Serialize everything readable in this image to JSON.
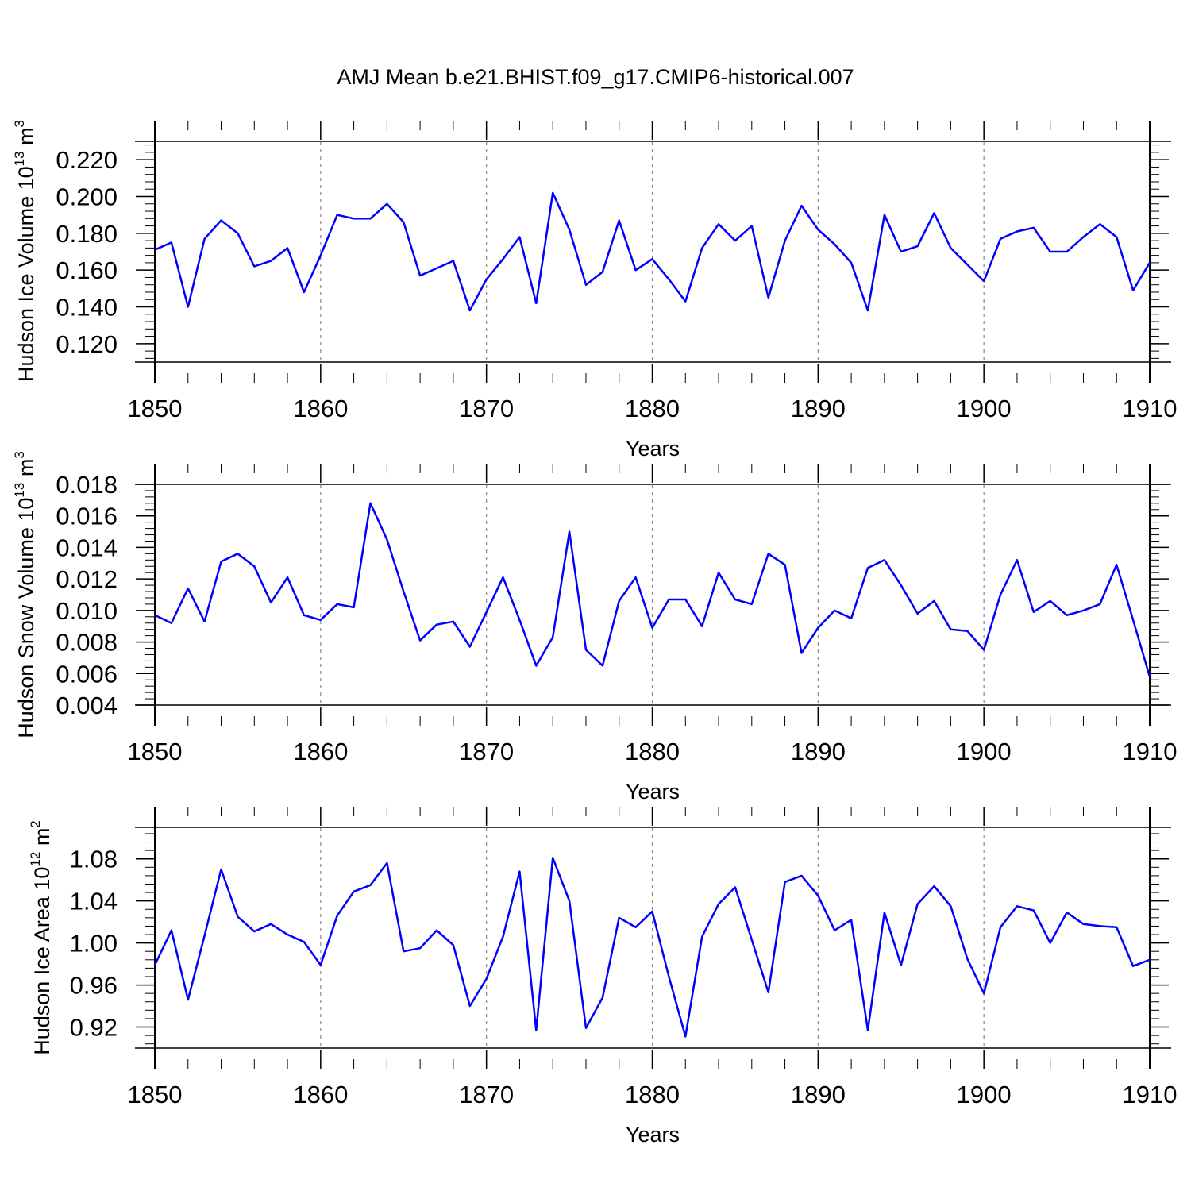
{
  "title": "AMJ Mean b.e21.BHIST.f09_g17.CMIP6-historical.007",
  "colors": {
    "line": "#0000ff",
    "axis": "#000000",
    "grid": "#888888"
  },
  "chart_data": [
    {
      "type": "line",
      "ylabel": {
        "main": "Hudson Ice Volume 10",
        "exp": "13",
        "unit": " m",
        "unit_exp": "3"
      },
      "xlabel": "Years",
      "xlim": [
        1850,
        1910
      ],
      "xticks": [
        1850,
        1860,
        1870,
        1880,
        1890,
        1900,
        1910
      ],
      "xtick_labels": [
        "1850",
        "1860",
        "1870",
        "1880",
        "1890",
        "1900",
        "1910"
      ],
      "ylim": [
        0.11,
        0.23
      ],
      "yticks": [
        0.12,
        0.14,
        0.16,
        0.18,
        0.2,
        0.22
      ],
      "ytick_labels": [
        "0.120",
        "0.140",
        "0.160",
        "0.180",
        "0.200",
        "0.220"
      ],
      "yminor_step": 0.004,
      "x": [
        1850,
        1851,
        1852,
        1853,
        1854,
        1855,
        1856,
        1857,
        1858,
        1859,
        1860,
        1861,
        1862,
        1863,
        1864,
        1865,
        1866,
        1867,
        1868,
        1869,
        1870,
        1871,
        1872,
        1873,
        1874,
        1875,
        1876,
        1877,
        1878,
        1879,
        1880,
        1881,
        1882,
        1883,
        1884,
        1885,
        1886,
        1887,
        1888,
        1889,
        1890,
        1891,
        1892,
        1893,
        1894,
        1895,
        1896,
        1897,
        1898,
        1899,
        1900,
        1901,
        1902,
        1903,
        1904,
        1905,
        1906,
        1907,
        1908,
        1909,
        1910
      ],
      "values": [
        0.171,
        0.175,
        0.14,
        0.177,
        0.187,
        0.18,
        0.162,
        0.165,
        0.172,
        0.148,
        0.168,
        0.19,
        0.188,
        0.188,
        0.196,
        0.186,
        0.157,
        0.161,
        0.165,
        0.138,
        0.155,
        0.166,
        0.178,
        0.142,
        0.202,
        0.182,
        0.152,
        0.159,
        0.187,
        0.16,
        0.166,
        0.155,
        0.143,
        0.172,
        0.185,
        0.176,
        0.184,
        0.145,
        0.176,
        0.195,
        0.182,
        0.174,
        0.164,
        0.138,
        0.19,
        0.17,
        0.173,
        0.191,
        0.172,
        0.163,
        0.154,
        0.177,
        0.181,
        0.183,
        0.17,
        0.17,
        0.178,
        0.185,
        0.178,
        0.149,
        0.164
      ]
    },
    {
      "type": "line",
      "ylabel": {
        "main": "Hudson Snow Volume 10",
        "exp": "13",
        "unit": " m",
        "unit_exp": "3"
      },
      "xlabel": "Years",
      "xlim": [
        1850,
        1910
      ],
      "xticks": [
        1850,
        1860,
        1870,
        1880,
        1890,
        1900,
        1910
      ],
      "xtick_labels": [
        "1850",
        "1860",
        "1870",
        "1880",
        "1890",
        "1900",
        "1910"
      ],
      "ylim": [
        0.004,
        0.018
      ],
      "yticks": [
        0.004,
        0.006,
        0.008,
        0.01,
        0.012,
        0.014,
        0.016,
        0.018
      ],
      "ytick_labels": [
        "0.004",
        "0.006",
        "0.008",
        "0.010",
        "0.012",
        "0.014",
        "0.016",
        "0.018"
      ],
      "yminor_step": 0.0004,
      "x": [
        1850,
        1851,
        1852,
        1853,
        1854,
        1855,
        1856,
        1857,
        1858,
        1859,
        1860,
        1861,
        1862,
        1863,
        1864,
        1865,
        1866,
        1867,
        1868,
        1869,
        1870,
        1871,
        1872,
        1873,
        1874,
        1875,
        1876,
        1877,
        1878,
        1879,
        1880,
        1881,
        1882,
        1883,
        1884,
        1885,
        1886,
        1887,
        1888,
        1889,
        1890,
        1891,
        1892,
        1893,
        1894,
        1895,
        1896,
        1897,
        1898,
        1899,
        1900,
        1901,
        1902,
        1903,
        1904,
        1905,
        1906,
        1907,
        1908,
        1909,
        1910
      ],
      "values": [
        0.0097,
        0.0092,
        0.0114,
        0.0093,
        0.0131,
        0.0136,
        0.0128,
        0.0105,
        0.0121,
        0.0097,
        0.0094,
        0.0104,
        0.0102,
        0.0168,
        0.0145,
        0.0112,
        0.0081,
        0.0091,
        0.0093,
        0.0077,
        0.0099,
        0.0121,
        0.0094,
        0.0065,
        0.0083,
        0.015,
        0.0075,
        0.0065,
        0.0106,
        0.0121,
        0.0089,
        0.0107,
        0.0107,
        0.009,
        0.0124,
        0.0107,
        0.0104,
        0.0136,
        0.0129,
        0.0073,
        0.0089,
        0.01,
        0.0095,
        0.0127,
        0.0132,
        0.0116,
        0.0098,
        0.0106,
        0.0088,
        0.0087,
        0.0075,
        0.011,
        0.0132,
        0.0099,
        0.0106,
        0.0097,
        0.01,
        0.0104,
        0.0129,
        0.0094,
        0.0058
      ]
    },
    {
      "type": "line",
      "ylabel": {
        "main": "Hudson Ice Area 10",
        "exp": "12",
        "unit": " m",
        "unit_exp": "2"
      },
      "xlabel": "Years",
      "xlim": [
        1850,
        1910
      ],
      "xticks": [
        1850,
        1860,
        1870,
        1880,
        1890,
        1900,
        1910
      ],
      "xtick_labels": [
        "1850",
        "1860",
        "1870",
        "1880",
        "1890",
        "1900",
        "1910"
      ],
      "ylim": [
        0.9,
        1.11
      ],
      "yticks": [
        0.92,
        0.96,
        1.0,
        1.04,
        1.08
      ],
      "ytick_labels": [
        "0.92",
        "0.96",
        "1.00",
        "1.04",
        "1.08"
      ],
      "yminor_step": 0.008,
      "x": [
        1850,
        1851,
        1852,
        1853,
        1854,
        1855,
        1856,
        1857,
        1858,
        1859,
        1860,
        1861,
        1862,
        1863,
        1864,
        1865,
        1866,
        1867,
        1868,
        1869,
        1870,
        1871,
        1872,
        1873,
        1874,
        1875,
        1876,
        1877,
        1878,
        1879,
        1880,
        1881,
        1882,
        1883,
        1884,
        1885,
        1886,
        1887,
        1888,
        1889,
        1890,
        1891,
        1892,
        1893,
        1894,
        1895,
        1896,
        1897,
        1898,
        1899,
        1900,
        1901,
        1902,
        1903,
        1904,
        1905,
        1906,
        1907,
        1908,
        1909,
        1910
      ],
      "values": [
        0.979,
        1.012,
        0.946,
        1.007,
        1.07,
        1.025,
        1.011,
        1.018,
        1.008,
        1.001,
        0.979,
        1.026,
        1.049,
        1.055,
        1.076,
        0.992,
        0.995,
        1.012,
        0.998,
        0.94,
        0.966,
        1.006,
        1.068,
        0.917,
        1.081,
        1.04,
        0.919,
        0.948,
        1.024,
        1.015,
        1.03,
        0.968,
        0.911,
        1.006,
        1.037,
        1.053,
        1.003,
        0.953,
        1.058,
        1.064,
        1.045,
        1.012,
        1.022,
        0.917,
        1.029,
        0.979,
        1.037,
        1.054,
        1.035,
        0.985,
        0.952,
        1.015,
        1.035,
        1.031,
        1.0,
        1.029,
        1.018,
        1.016,
        1.015,
        0.978,
        0.984
      ]
    }
  ]
}
